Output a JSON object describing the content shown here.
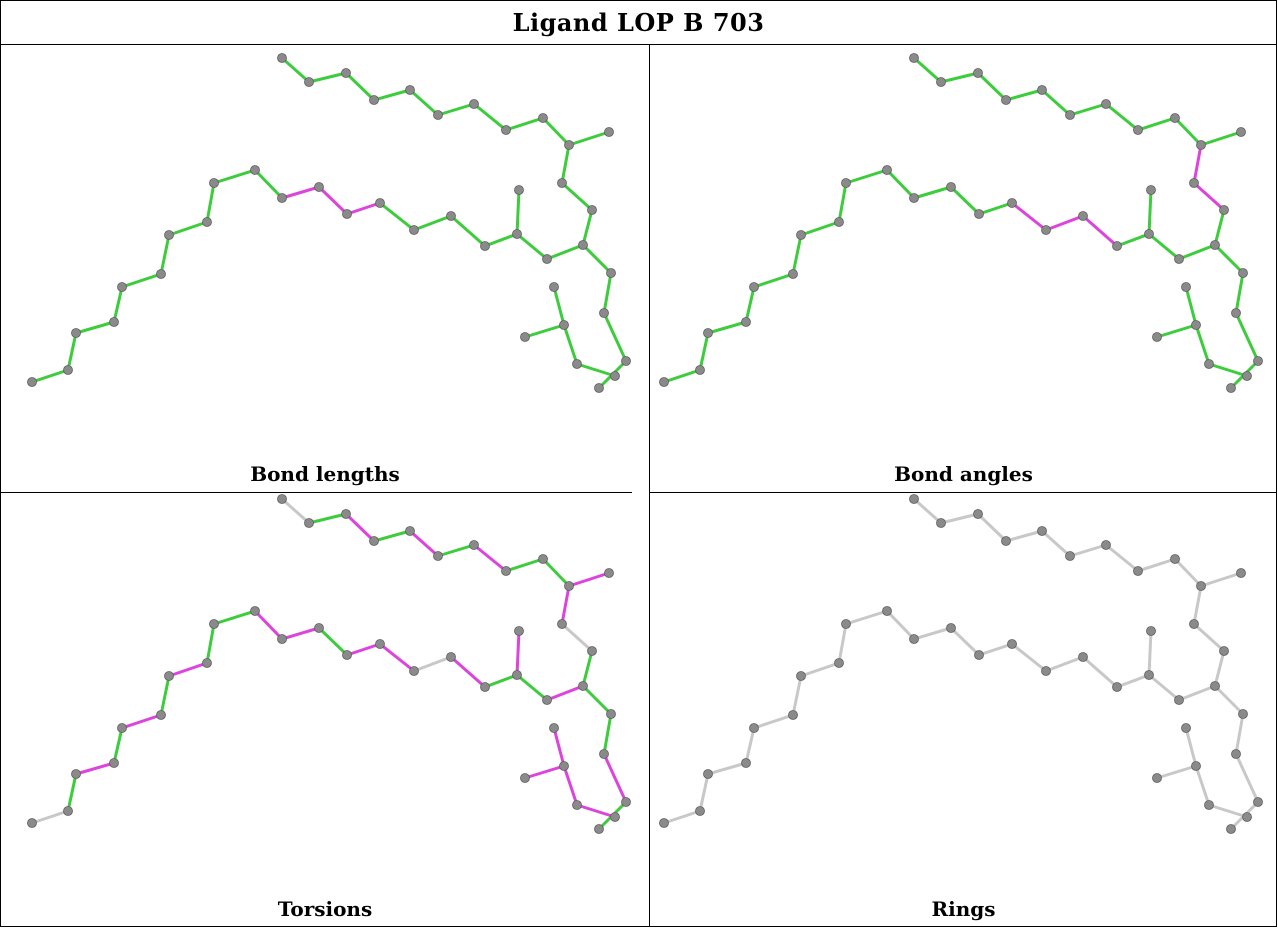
{
  "title": "Ligand LOP B 703",
  "colors": {
    "green": "#3ccc3c",
    "magenta": "#dd44dd",
    "grey": "#c8c8c8",
    "atom": "#8a8a8a"
  },
  "panels": [
    {
      "caption": "Bond lengths",
      "bond_colors": {
        "default": "green",
        "overrides": [
          [
            24,
            "magenta"
          ],
          [
            25,
            "magenta"
          ],
          [
            26,
            "magenta"
          ]
        ]
      }
    },
    {
      "caption": "Bond angles",
      "bond_colors": {
        "default": "green",
        "overrides": [
          [
            10,
            "magenta"
          ],
          [
            11,
            "magenta"
          ],
          [
            21,
            "magenta"
          ],
          [
            22,
            "magenta"
          ],
          [
            23,
            "magenta"
          ]
        ]
      }
    },
    {
      "caption": "Torsions",
      "bond_colors": {
        "default": "green",
        "overrides": [
          [
            0,
            "grey"
          ],
          [
            2,
            "magenta"
          ],
          [
            4,
            "magenta"
          ],
          [
            6,
            "magenta"
          ],
          [
            9,
            "magenta"
          ],
          [
            10,
            "magenta"
          ],
          [
            11,
            "grey"
          ],
          [
            15,
            "magenta"
          ],
          [
            17,
            "magenta"
          ],
          [
            19,
            "magenta"
          ],
          [
            21,
            "magenta"
          ],
          [
            22,
            "grey"
          ],
          [
            23,
            "magenta"
          ],
          [
            24,
            "magenta"
          ],
          [
            26,
            "magenta"
          ],
          [
            27,
            "magenta"
          ],
          [
            30,
            "magenta"
          ],
          [
            32,
            "magenta"
          ],
          [
            34,
            "magenta"
          ],
          [
            36,
            "grey"
          ],
          [
            37,
            "magenta"
          ],
          [
            38,
            "magenta"
          ],
          [
            39,
            "magenta"
          ],
          [
            40,
            "magenta"
          ],
          [
            42,
            "grey"
          ],
          [
            43,
            "grey"
          ],
          [
            44,
            "grey"
          ],
          [
            46,
            "magenta"
          ],
          [
            47,
            "grey"
          ]
        ]
      }
    },
    {
      "caption": "Rings",
      "bond_colors": {
        "default": "grey",
        "overrides": []
      }
    }
  ]
}
